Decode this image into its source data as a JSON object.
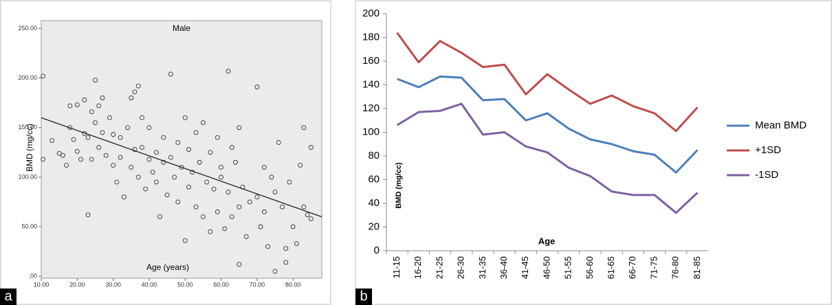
{
  "chart_data": [
    {
      "type": "scatter",
      "panel_label": "a",
      "title": "Male",
      "x_label": "Age (years)",
      "y_label": "BMD (mg/cc)",
      "xlim": [
        10,
        88
      ],
      "ylim": [
        -2,
        258
      ],
      "xticks": [
        {
          "value": 10,
          "label": "10.00"
        },
        {
          "value": 20,
          "label": "20.00"
        },
        {
          "value": 30,
          "label": "30.00"
        },
        {
          "value": 40,
          "label": "40.00"
        },
        {
          "value": 50,
          "label": "50.00"
        },
        {
          "value": 60,
          "label": "60.00"
        },
        {
          "value": 70,
          "label": "70.00"
        },
        {
          "value": 80,
          "label": "80.00"
        }
      ],
      "yticks": [
        {
          "value": 0,
          "label": ".00"
        },
        {
          "value": 50,
          "label": "50.00"
        },
        {
          "value": 100,
          "label": "100.00"
        },
        {
          "value": 150,
          "label": "150.00"
        },
        {
          "value": 200,
          "label": "200.00"
        },
        {
          "value": 250,
          "label": "250.00"
        }
      ],
      "color": "#333333",
      "x": [
        10.5,
        10.5,
        13,
        15,
        16,
        17,
        18,
        18,
        19,
        20,
        20,
        21,
        22,
        22,
        23,
        23,
        24,
        24,
        25,
        25,
        26,
        26,
        27,
        27,
        28,
        29,
        30,
        30,
        31,
        32,
        32,
        33,
        34,
        35,
        35,
        36,
        36,
        37,
        37,
        38,
        38,
        39,
        40,
        40,
        41,
        42,
        42,
        43,
        44,
        44,
        45,
        46,
        46,
        47,
        48,
        48,
        49,
        50,
        50,
        51,
        51,
        52,
        53,
        53,
        54,
        55,
        55,
        56,
        57,
        57,
        58,
        59,
        59,
        60,
        60,
        61,
        62,
        62,
        63,
        63,
        64,
        65,
        65,
        65,
        66,
        67,
        68,
        70,
        70,
        71,
        72,
        72,
        73,
        74,
        75,
        75,
        76,
        77,
        78,
        78,
        79,
        80,
        81,
        82,
        83,
        83,
        84,
        85,
        85
      ],
      "y": [
        202,
        118,
        137,
        124,
        122,
        112,
        150,
        172,
        138,
        126,
        173,
        118,
        144,
        178,
        62,
        140,
        166,
        118,
        198,
        155,
        172,
        130,
        180,
        145,
        122,
        160,
        112,
        143,
        95,
        140,
        120,
        80,
        150,
        180,
        110,
        186,
        128,
        192,
        100,
        160,
        130,
        88,
        118,
        150,
        105,
        125,
        95,
        60,
        140,
        115,
        82,
        204,
        120,
        100,
        135,
        75,
        110,
        160,
        36,
        128,
        90,
        105,
        145,
        70,
        115,
        60,
        155,
        95,
        125,
        45,
        88,
        140,
        65,
        100,
        110,
        48,
        85,
        207,
        130,
        60,
        115,
        150,
        70,
        12,
        90,
        40,
        75,
        191,
        80,
        50,
        110,
        65,
        30,
        100,
        85,
        5,
        135,
        70,
        14,
        28,
        95,
        50,
        33,
        112,
        150,
        70,
        62,
        130,
        58
      ],
      "trend_line": {
        "x": [
          10,
          88
        ],
        "y": [
          160,
          60
        ]
      }
    },
    {
      "type": "line",
      "panel_label": "b",
      "x_label": "Age",
      "y_label": "BMD (mg/cc)",
      "categories": [
        "11-15",
        "16-20",
        "21-25",
        "26-30",
        "31-35",
        "36-40",
        "41-45",
        "46-50",
        "51-55",
        "56-60",
        "61-65",
        "66-70",
        "71-75",
        "76-80",
        "81-85"
      ],
      "ylim": [
        0,
        200
      ],
      "yticks": [
        0,
        20,
        40,
        60,
        80,
        100,
        120,
        140,
        160,
        180,
        200
      ],
      "grid": false,
      "legend": "right",
      "series": [
        {
          "name": "Mean BMD",
          "color": "#4a7ebb",
          "values": [
            145,
            138,
            147,
            146,
            127,
            128,
            110,
            116,
            103,
            94,
            90,
            84,
            81,
            66,
            85
          ]
        },
        {
          "name": "+1SD",
          "color": "#be4b48",
          "values": [
            184,
            159,
            177,
            167,
            155,
            157,
            132,
            149,
            136,
            124,
            131,
            122,
            116,
            101,
            121
          ]
        },
        {
          "name": "-1SD",
          "color": "#7d5fa0",
          "values": [
            106,
            117,
            118,
            124,
            98,
            100,
            88,
            83,
            70,
            63,
            50,
            47,
            47,
            32,
            49
          ]
        }
      ]
    }
  ]
}
